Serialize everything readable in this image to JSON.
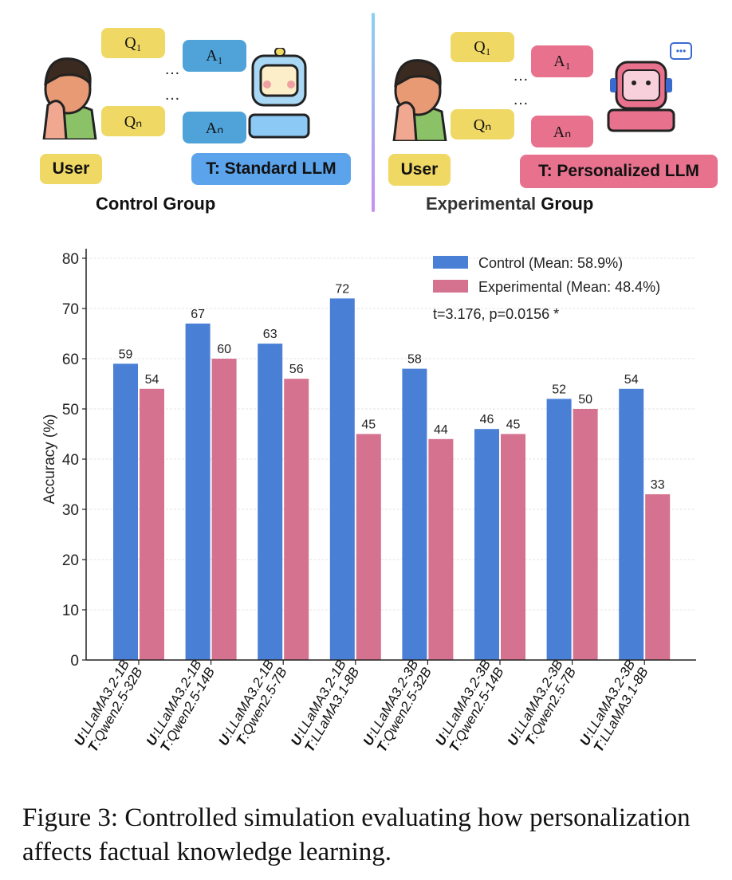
{
  "diagram": {
    "control": {
      "q1": "Q₁",
      "qn": "Qₙ",
      "a1": "A₁",
      "an": "Aₙ",
      "ellipsis": "…",
      "user_label": "User",
      "target_label": "T: Standard LLM",
      "group_title": "Control Group",
      "answer_color": "#4fa3d9"
    },
    "experimental": {
      "q1": "Q₁",
      "qn": "Qₙ",
      "a1": "A₁",
      "an": "Aₙ",
      "ellipsis": "…",
      "user_label": "User",
      "target_label": "T: Personalized LLM",
      "group_title_part1": "Experimental",
      "group_title_part2": " Group",
      "answer_color": "#e8728e"
    },
    "question_color": "#f0d864"
  },
  "chart_data": {
    "type": "bar",
    "ylabel": "Accuracy (%)",
    "ylim": [
      0,
      80
    ],
    "yticks": [
      0,
      10,
      20,
      30,
      40,
      50,
      60,
      70,
      80
    ],
    "grid": true,
    "legend_position": "top-right",
    "categories": [
      {
        "u": "U",
        "u_model": ":LLaMA3.2-1B",
        "t": "T",
        "t_model": ":Qwen2.5-32B"
      },
      {
        "u": "U",
        "u_model": ":LLaMA3.2-1B",
        "t": "T",
        "t_model": ":Qwen2.5-14B"
      },
      {
        "u": "U",
        "u_model": ":LLaMA3.2-1B",
        "t": "T",
        "t_model": ":Qwen2.5-7B"
      },
      {
        "u": "U",
        "u_model": ":LLaMA3.2-1B",
        "t": "T",
        "t_model": ":LLaMA3.1-8B"
      },
      {
        "u": "U",
        "u_model": ":LLaMA3.2-3B",
        "t": "T",
        "t_model": ":Qwen2.5-32B"
      },
      {
        "u": "U",
        "u_model": ":LLaMA3.2-3B",
        "t": "T",
        "t_model": ":Qwen2.5-14B"
      },
      {
        "u": "U",
        "u_model": ":LLaMA3.2-3B",
        "t": "T",
        "t_model": ":Qwen2.5-7B"
      },
      {
        "u": "U",
        "u_model": ":LLaMA3.2-3B",
        "t": "T",
        "t_model": ":LLaMA3.1-8B"
      }
    ],
    "series": [
      {
        "name": "Control (Mean: 58.9%)",
        "color": "#4a7fd6",
        "values": [
          59,
          67,
          63,
          72,
          58,
          46,
          52,
          54
        ]
      },
      {
        "name": "Experimental (Mean: 48.4%)",
        "color": "#d5728f",
        "values": [
          54,
          60,
          56,
          45,
          44,
          45,
          50,
          33
        ]
      }
    ],
    "annotation": "t=3.176, p=0.0156 *"
  },
  "caption": "Figure 3: Controlled simulation evaluating how personalization affects factual knowledge learning."
}
